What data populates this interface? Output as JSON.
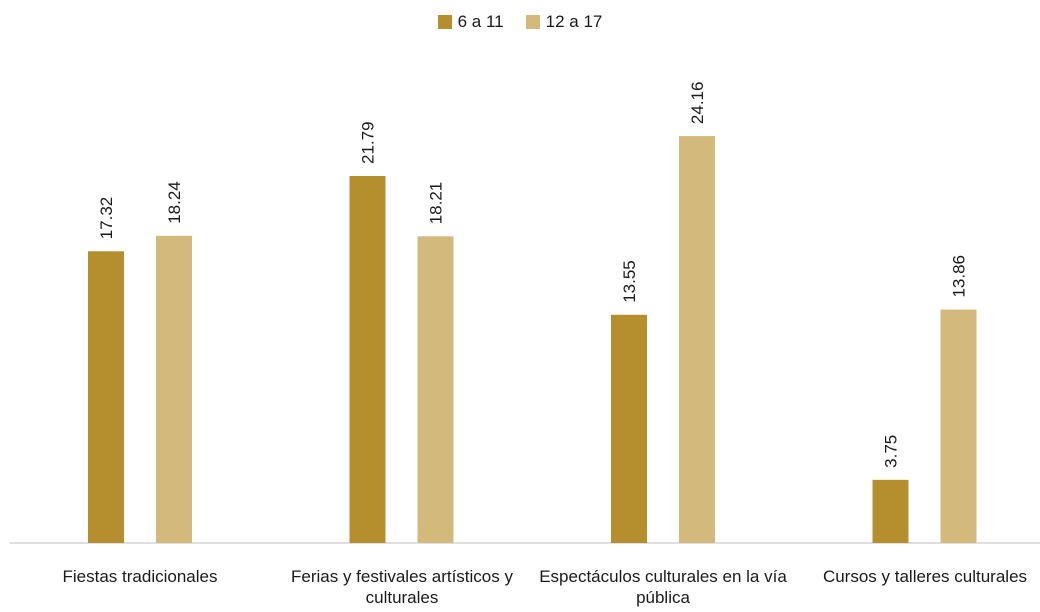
{
  "chart_data": {
    "type": "bar",
    "categories": [
      "Fiestas tradicionales",
      "Ferias y festivales artísticos y culturales",
      "Espectáculos culturales en la vía pública",
      "Cursos y talleres culturales"
    ],
    "series": [
      {
        "name": "6 a 11",
        "values": [
          17.32,
          21.79,
          13.55,
          3.75
        ],
        "color": "#b58e2e"
      },
      {
        "name": "12 a 17",
        "values": [
          18.24,
          18.21,
          24.16,
          13.86
        ],
        "color": "#d3ba7c"
      }
    ],
    "value_labels": [
      [
        "17.32",
        "21.79",
        "13.55",
        "3.75"
      ],
      [
        "18.24",
        "18.21",
        "24.16",
        "13.86"
      ]
    ],
    "title": "",
    "xlabel": "",
    "ylabel": "",
    "ylim": [
      0,
      27
    ],
    "grid": false,
    "legend_position": "top-center"
  }
}
